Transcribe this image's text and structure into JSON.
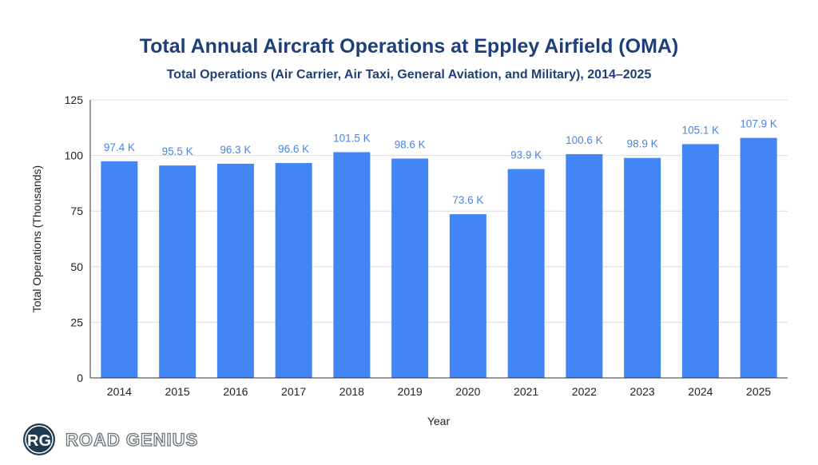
{
  "chart_data": {
    "type": "bar",
    "title": "Total Annual Aircraft Operations at Eppley Airfield (OMA)",
    "subtitle": "Total Operations (Air Carrier, Air Taxi, General Aviation, and Military), 2014–2025",
    "xlabel": "Year",
    "ylabel": "Total Operations (Thousands)",
    "ylim": [
      0,
      125
    ],
    "yticks": [
      0,
      25,
      50,
      75,
      100,
      125
    ],
    "grid": true,
    "categories": [
      "2014",
      "2015",
      "2016",
      "2017",
      "2018",
      "2019",
      "2020",
      "2021",
      "2022",
      "2023",
      "2024",
      "2025"
    ],
    "values": [
      97.4,
      95.5,
      96.3,
      96.6,
      101.5,
      98.6,
      73.6,
      93.9,
      100.6,
      98.9,
      105.1,
      107.9
    ],
    "data_labels": [
      "97.4 K",
      "95.5 K",
      "96.3 K",
      "96.6 K",
      "101.5 K",
      "98.6 K",
      "73.6 K",
      "93.9 K",
      "100.6 K",
      "98.9 K",
      "105.1 K",
      "107.9 K"
    ],
    "bar_color": "#4285f4",
    "label_color": "#4a86dc"
  },
  "logo": {
    "initials": "RG",
    "name": "ROAD GENIUS",
    "color": "#1f3a4f"
  }
}
